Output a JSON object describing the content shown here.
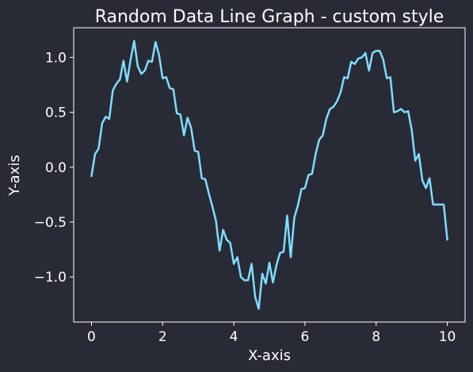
{
  "chart_data": {
    "type": "line",
    "title": "Random Data Line Graph - custom style",
    "xlabel": "X-axis",
    "ylabel": "Y-axis",
    "xlim": [
      -0.5,
      10.5
    ],
    "ylim": [
      -1.41,
      1.27
    ],
    "xticks": [
      0,
      2,
      4,
      6,
      8,
      10
    ],
    "xtick_labels": [
      "0",
      "2",
      "4",
      "6",
      "8",
      "10"
    ],
    "yticks": [
      -1.0,
      -0.5,
      0.0,
      0.5,
      1.0
    ],
    "ytick_labels": [
      "−1.0",
      "−0.5",
      "0.0",
      "0.5",
      "1.0"
    ],
    "grid": false,
    "legend": "none",
    "background_color": "#282b36",
    "line_color": "#7fdcff",
    "axis_color": "#ffffff",
    "series": [
      {
        "x": [
          0.0,
          0.1,
          0.2,
          0.3,
          0.4,
          0.5,
          0.6,
          0.7,
          0.8,
          0.9,
          1.0,
          1.1,
          1.2,
          1.3,
          1.4,
          1.5,
          1.6,
          1.7,
          1.8,
          1.9,
          2.0,
          2.1,
          2.2,
          2.3,
          2.4,
          2.5,
          2.6,
          2.7,
          2.8,
          2.9,
          3.0,
          3.1,
          3.2,
          3.3,
          3.4,
          3.5,
          3.6,
          3.7,
          3.8,
          3.9,
          4.0,
          4.1,
          4.2,
          4.3,
          4.4,
          4.5,
          4.6,
          4.7,
          4.8,
          4.9,
          5.0,
          5.1,
          5.2,
          5.3,
          5.4,
          5.5,
          5.6,
          5.7,
          5.8,
          5.9,
          6.0,
          6.1,
          6.2,
          6.3,
          6.4,
          6.5,
          6.6,
          6.7,
          6.8,
          6.9,
          7.0,
          7.1,
          7.2,
          7.3,
          7.4,
          7.5,
          7.6,
          7.7,
          7.8,
          7.9,
          8.0,
          8.1,
          8.2,
          8.3,
          8.4,
          8.5,
          8.6,
          8.7,
          8.8,
          8.9,
          9.0,
          9.1,
          9.2,
          9.3,
          9.4,
          9.5,
          9.6,
          9.7,
          9.8,
          9.9,
          10.0
        ],
        "y": [
          -0.08,
          0.12,
          0.17,
          0.4,
          0.46,
          0.44,
          0.7,
          0.76,
          0.8,
          0.97,
          0.78,
          0.98,
          1.15,
          0.92,
          0.85,
          0.88,
          0.97,
          0.96,
          1.14,
          1.02,
          0.81,
          0.82,
          0.72,
          0.71,
          0.49,
          0.48,
          0.29,
          0.45,
          0.36,
          0.15,
          0.14,
          -0.1,
          -0.11,
          -0.24,
          -0.36,
          -0.49,
          -0.76,
          -0.57,
          -0.66,
          -0.69,
          -0.88,
          -0.82,
          -1.0,
          -1.03,
          -1.03,
          -0.88,
          -1.18,
          -1.29,
          -0.97,
          -1.06,
          -0.87,
          -1.05,
          -0.89,
          -0.78,
          -0.77,
          -0.44,
          -0.82,
          -0.46,
          -0.35,
          -0.2,
          -0.19,
          -0.07,
          -0.06,
          0.12,
          0.25,
          0.29,
          0.44,
          0.53,
          0.55,
          0.6,
          0.68,
          0.82,
          0.81,
          0.96,
          0.94,
          0.99,
          1.0,
          1.04,
          0.88,
          1.04,
          1.06,
          1.06,
          0.98,
          0.81,
          0.82,
          0.5,
          0.51,
          0.53,
          0.5,
          0.51,
          0.34,
          0.06,
          0.12,
          -0.12,
          -0.19,
          -0.1,
          -0.34,
          -0.34,
          -0.34,
          -0.34,
          -0.66
        ]
      }
    ]
  }
}
